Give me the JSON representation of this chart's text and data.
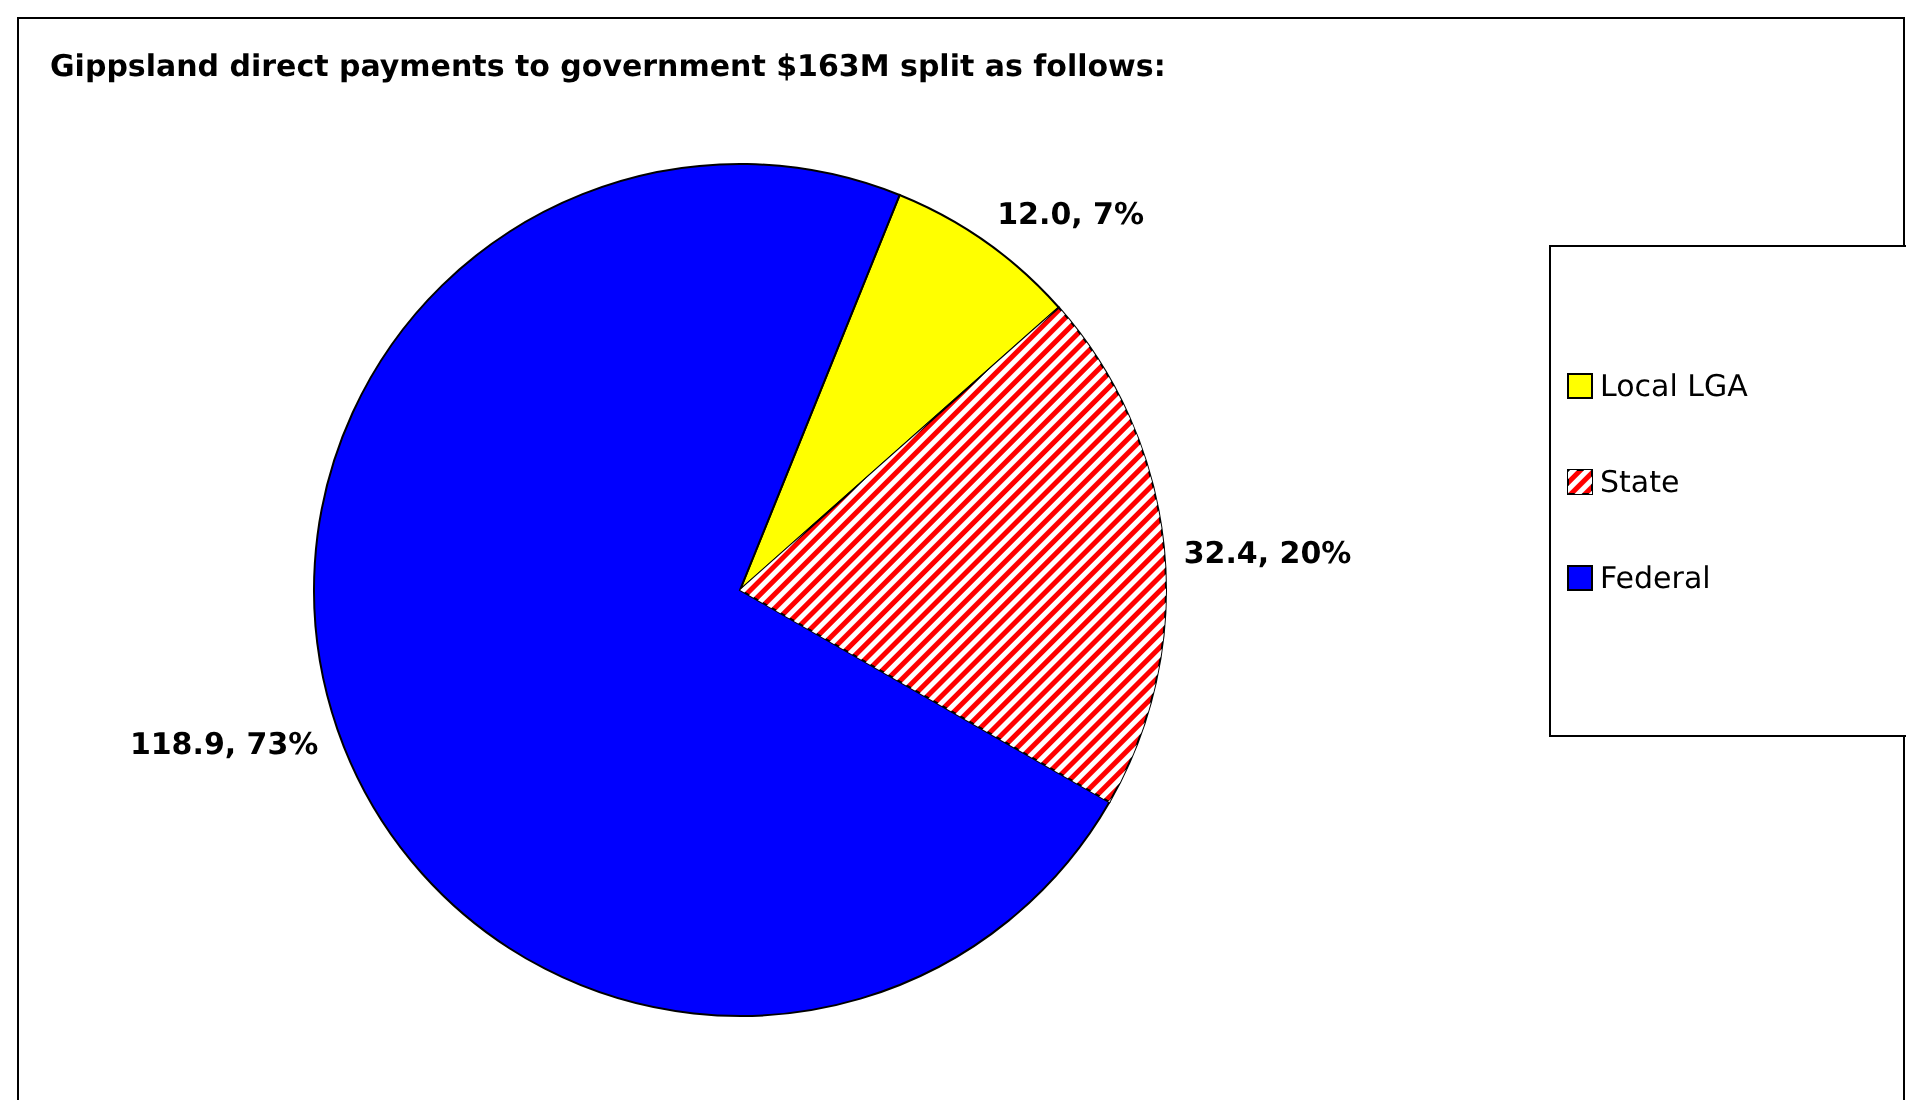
{
  "chart_data": {
    "type": "pie",
    "title": "Gippsland direct payments to government $163M split as follows:",
    "categories": [
      "Local LGA",
      "State",
      "Federal"
    ],
    "values": [
      12.0,
      32.4,
      118.9
    ],
    "colors": [
      "#ffff00",
      "#ff0000",
      "#0000ff"
    ],
    "value_labels": [
      "12.0, 7%",
      "32.4, 20%",
      "118.9, 73%"
    ],
    "legend": "right"
  }
}
